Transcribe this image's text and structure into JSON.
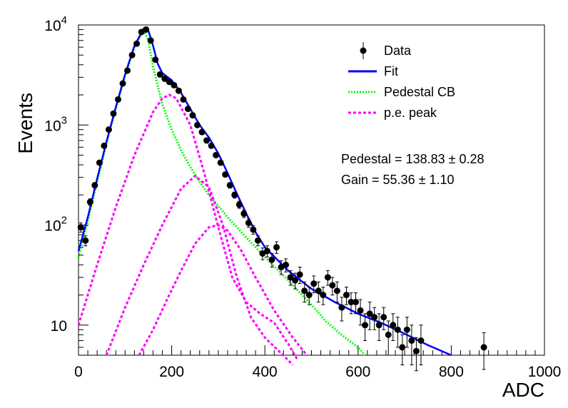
{
  "chart_data": {
    "type": "scatter",
    "xlabel": "ADC",
    "ylabel": "Events",
    "xlim": [
      0,
      1000
    ],
    "ylim": [
      5,
      10000
    ],
    "yscale": "log",
    "grid": false,
    "legend_position": "top-right",
    "x_ticks": [
      "0",
      "200",
      "400",
      "600",
      "800",
      "1000"
    ],
    "y_ticks": [
      {
        "value": 10,
        "base": "10",
        "exp": ""
      },
      {
        "value": 100,
        "base": "10",
        "exp": "2"
      },
      {
        "value": 1000,
        "base": "10",
        "exp": "3"
      },
      {
        "value": 10000,
        "base": "10",
        "exp": "4"
      }
    ],
    "legend": [
      {
        "key": "data",
        "label": "Data",
        "color": "#000000",
        "style": "marker"
      },
      {
        "key": "fit",
        "label": "Fit",
        "color": "#0000ff",
        "style": "solid"
      },
      {
        "key": "pedestal",
        "label": "Pedestal CB",
        "color": "#00ff00",
        "style": "dotted"
      },
      {
        "key": "pe",
        "label": "p.e. peak",
        "color": "#ff00ff",
        "style": "dashed"
      }
    ],
    "annotations": {
      "pedestal": "Pedestal = 138.83 ± 0.28",
      "gain": "Gain = 55.36 ± 1.10"
    },
    "series": [
      {
        "key": "data",
        "color": "#000000",
        "points": [
          {
            "x": 5,
            "y": 95,
            "err": 10
          },
          {
            "x": 15,
            "y": 70,
            "err": 8
          },
          {
            "x": 25,
            "y": 170,
            "err": 13
          },
          {
            "x": 35,
            "y": 250,
            "err": 16
          },
          {
            "x": 45,
            "y": 420,
            "err": 20
          },
          {
            "x": 55,
            "y": 620,
            "err": 25
          },
          {
            "x": 65,
            "y": 900,
            "err": 30
          },
          {
            "x": 75,
            "y": 1300,
            "err": 36
          },
          {
            "x": 85,
            "y": 1800,
            "err": 42
          },
          {
            "x": 95,
            "y": 2600,
            "err": 51
          },
          {
            "x": 105,
            "y": 3500,
            "err": 59
          },
          {
            "x": 115,
            "y": 5000,
            "err": 71
          },
          {
            "x": 125,
            "y": 6500,
            "err": 81
          },
          {
            "x": 135,
            "y": 8500,
            "err": 92
          },
          {
            "x": 145,
            "y": 9000,
            "err": 95
          },
          {
            "x": 155,
            "y": 7000,
            "err": 84
          },
          {
            "x": 165,
            "y": 4500,
            "err": 67
          },
          {
            "x": 175,
            "y": 3200,
            "err": 57
          },
          {
            "x": 185,
            "y": 2900,
            "err": 54
          },
          {
            "x": 195,
            "y": 2700,
            "err": 52
          },
          {
            "x": 205,
            "y": 2500,
            "err": 50
          },
          {
            "x": 215,
            "y": 2200,
            "err": 47
          },
          {
            "x": 225,
            "y": 1800,
            "err": 42
          },
          {
            "x": 235,
            "y": 1450,
            "err": 38
          },
          {
            "x": 245,
            "y": 1250,
            "err": 35
          },
          {
            "x": 255,
            "y": 1000,
            "err": 32
          },
          {
            "x": 265,
            "y": 850,
            "err": 29
          },
          {
            "x": 275,
            "y": 700,
            "err": 26
          },
          {
            "x": 285,
            "y": 620,
            "err": 25
          },
          {
            "x": 295,
            "y": 500,
            "err": 22
          },
          {
            "x": 305,
            "y": 420,
            "err": 20
          },
          {
            "x": 315,
            "y": 320,
            "err": 18
          },
          {
            "x": 325,
            "y": 250,
            "err": 16
          },
          {
            "x": 335,
            "y": 200,
            "err": 14
          },
          {
            "x": 345,
            "y": 160,
            "err": 13
          },
          {
            "x": 355,
            "y": 130,
            "err": 11
          },
          {
            "x": 365,
            "y": 105,
            "err": 10
          },
          {
            "x": 375,
            "y": 90,
            "err": 9
          },
          {
            "x": 385,
            "y": 70,
            "err": 8
          },
          {
            "x": 395,
            "y": 52,
            "err": 7
          },
          {
            "x": 405,
            "y": 55,
            "err": 7
          },
          {
            "x": 415,
            "y": 45,
            "err": 7
          },
          {
            "x": 425,
            "y": 60,
            "err": 8
          },
          {
            "x": 435,
            "y": 38,
            "err": 6
          },
          {
            "x": 445,
            "y": 40,
            "err": 6
          },
          {
            "x": 455,
            "y": 30,
            "err": 5
          },
          {
            "x": 465,
            "y": 28,
            "err": 5
          },
          {
            "x": 475,
            "y": 32,
            "err": 6
          },
          {
            "x": 485,
            "y": 22,
            "err": 5
          },
          {
            "x": 495,
            "y": 20,
            "err": 4
          },
          {
            "x": 505,
            "y": 26,
            "err": 5
          },
          {
            "x": 515,
            "y": 22,
            "err": 5
          },
          {
            "x": 525,
            "y": 20,
            "err": 4
          },
          {
            "x": 535,
            "y": 30,
            "err": 5
          },
          {
            "x": 545,
            "y": 25,
            "err": 5
          },
          {
            "x": 555,
            "y": 22,
            "err": 5
          },
          {
            "x": 565,
            "y": 15,
            "err": 4
          },
          {
            "x": 575,
            "y": 20,
            "err": 4
          },
          {
            "x": 585,
            "y": 17,
            "err": 4
          },
          {
            "x": 595,
            "y": 17,
            "err": 4
          },
          {
            "x": 605,
            "y": 14,
            "err": 4
          },
          {
            "x": 615,
            "y": 10,
            "err": 3
          },
          {
            "x": 625,
            "y": 13,
            "err": 4
          },
          {
            "x": 635,
            "y": 12,
            "err": 3
          },
          {
            "x": 645,
            "y": 10,
            "err": 3
          },
          {
            "x": 655,
            "y": 12,
            "err": 3
          },
          {
            "x": 665,
            "y": 8,
            "err": 3
          },
          {
            "x": 675,
            "y": 10,
            "err": 3
          },
          {
            "x": 685,
            "y": 9,
            "err": 3
          },
          {
            "x": 695,
            "y": 6,
            "err": 2
          },
          {
            "x": 705,
            "y": 9,
            "err": 3
          },
          {
            "x": 715,
            "y": 7,
            "err": 3
          },
          {
            "x": 725,
            "y": 5.5,
            "err": 2
          },
          {
            "x": 735,
            "y": 7,
            "err": 3
          },
          {
            "x": 870,
            "y": 6,
            "err": 2.4
          }
        ]
      },
      {
        "key": "fit",
        "color": "#0000ff",
        "x": [
          0,
          20,
          40,
          60,
          80,
          100,
          120,
          140,
          150,
          160,
          170,
          180,
          200,
          220,
          240,
          260,
          280,
          300,
          320,
          340,
          360,
          380,
          400,
          450,
          500,
          550,
          600,
          650,
          700,
          750,
          800
        ],
        "y": [
          55,
          120,
          290,
          680,
          1500,
          3200,
          6200,
          9200,
          8800,
          6200,
          4100,
          3300,
          2800,
          2100,
          1450,
          1000,
          750,
          520,
          330,
          205,
          130,
          85,
          60,
          35,
          23,
          17,
          13,
          10.5,
          8.2,
          6.3,
          5
        ]
      },
      {
        "key": "pedestal",
        "color": "#00ff00",
        "x": [
          0,
          20,
          40,
          60,
          80,
          100,
          120,
          140,
          150,
          160,
          180,
          200,
          220,
          240,
          260,
          280,
          300,
          320,
          340,
          360,
          380,
          400,
          450,
          500,
          530,
          560,
          600,
          615
        ],
        "y": [
          48,
          110,
          270,
          650,
          1450,
          3100,
          6000,
          8900,
          7000,
          3800,
          1600,
          900,
          560,
          380,
          270,
          200,
          155,
          120,
          95,
          75,
          60,
          48,
          28,
          16,
          11,
          8.3,
          6,
          5
        ]
      },
      {
        "key": "pe1",
        "color": "#ff00ff",
        "x": [
          0,
          40,
          80,
          120,
          160,
          180,
          195,
          210,
          240,
          270,
          300,
          330,
          360,
          390,
          420,
          450,
          470
        ],
        "y": [
          10,
          40,
          150,
          500,
          1350,
          1850,
          2000,
          1850,
          1000,
          330,
          95,
          30,
          17,
          13,
          10.5,
          6.5,
          4.5
        ]
      },
      {
        "key": "pe2",
        "color": "#ff00ff",
        "x": [
          60,
          100,
          140,
          180,
          220,
          250,
          280,
          310,
          340,
          370,
          400,
          430,
          460
        ],
        "y": [
          5,
          15,
          40,
          100,
          230,
          310,
          240,
          100,
          30,
          12,
          7.5,
          5.5,
          4
        ]
      },
      {
        "key": "pe3",
        "color": "#ff00ff",
        "x": [
          130,
          160,
          190,
          220,
          250,
          280,
          300,
          320,
          350,
          380,
          420,
          460,
          490
        ],
        "y": [
          5,
          9,
          18,
          35,
          65,
          95,
          100,
          88,
          55,
          30,
          14,
          7.5,
          5
        ]
      }
    ]
  }
}
